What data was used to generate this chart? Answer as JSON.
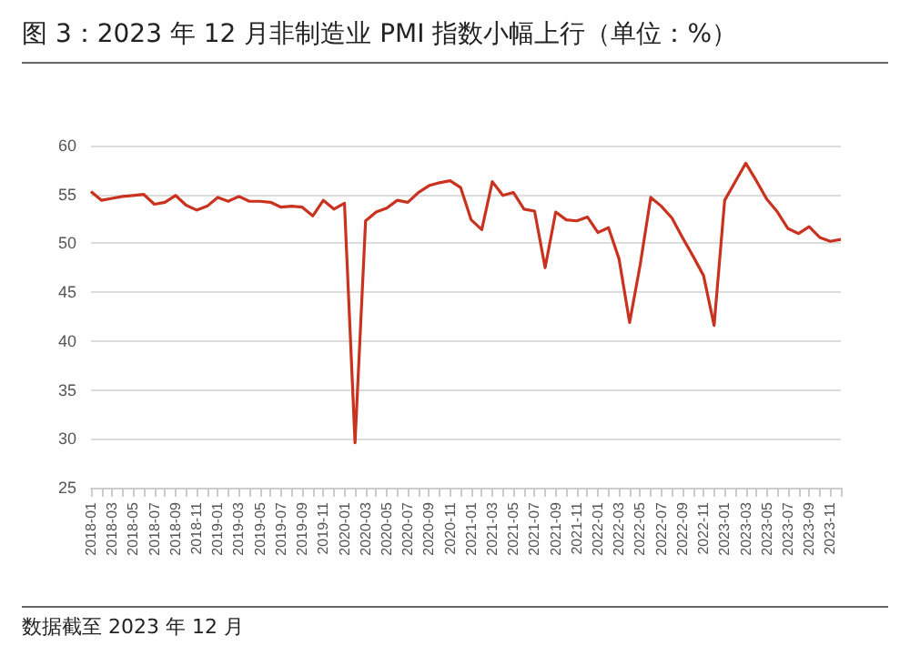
{
  "chart_data": {
    "type": "line",
    "title": "图 3：2023 年 12 月非制造业 PMI 指数小幅上行（单位：%）",
    "annotations": [
      "数据截至 2023 年 12 月"
    ],
    "categories": [
      "2018-01",
      null,
      "2018-03",
      null,
      "2018-05",
      null,
      "2018-07",
      null,
      "2018-09",
      null,
      "2018-11",
      null,
      "2019-01",
      null,
      "2019-03",
      null,
      "2019-05",
      null,
      "2019-07",
      null,
      "2019-09",
      null,
      "2019-11",
      null,
      "2020-01",
      null,
      "2020-03",
      null,
      "2020-05",
      null,
      "2020-07",
      null,
      "2020-09",
      null,
      "2020-11",
      null,
      "2021-01",
      null,
      "2021-03",
      null,
      "2021-05",
      null,
      "2021-07",
      null,
      "2021-09",
      null,
      "2021-11",
      null,
      "2022-01",
      null,
      "2022-03",
      null,
      "2022-05",
      null,
      "2022-07",
      null,
      "2022-09",
      null,
      "2022-11",
      null,
      "2023-01",
      null,
      "2023-03",
      null,
      "2023-05",
      null,
      "2023-07",
      null,
      "2023-09",
      null,
      "2023-11",
      null
    ],
    "series": [
      {
        "color": "#c8321e",
        "values": [
          55.3,
          54.4,
          54.6,
          54.8,
          54.9,
          55.0,
          54.0,
          54.2,
          54.9,
          53.9,
          53.4,
          53.8,
          54.7,
          54.3,
          54.8,
          54.3,
          54.3,
          54.2,
          53.7,
          53.8,
          53.7,
          52.8,
          54.4,
          53.5,
          54.1,
          29.6,
          52.3,
          53.2,
          53.6,
          54.4,
          54.2,
          55.2,
          55.9,
          56.2,
          56.4,
          55.7,
          52.4,
          51.4,
          56.3,
          54.9,
          55.2,
          53.5,
          53.3,
          47.5,
          53.2,
          52.4,
          52.3,
          52.7,
          51.1,
          51.6,
          48.4,
          41.9,
          47.8,
          54.7,
          53.8,
          52.6,
          50.6,
          48.7,
          46.7,
          41.6,
          54.4,
          56.3,
          58.2,
          56.4,
          54.5,
          53.2,
          51.5,
          51.0,
          51.7,
          50.6,
          50.2,
          50.4
        ]
      }
    ],
    "ylim": [
      25,
      60
    ],
    "yticks": [
      25,
      30,
      35,
      40,
      45,
      50,
      55,
      60
    ],
    "grid": "y",
    "marker": "none"
  }
}
